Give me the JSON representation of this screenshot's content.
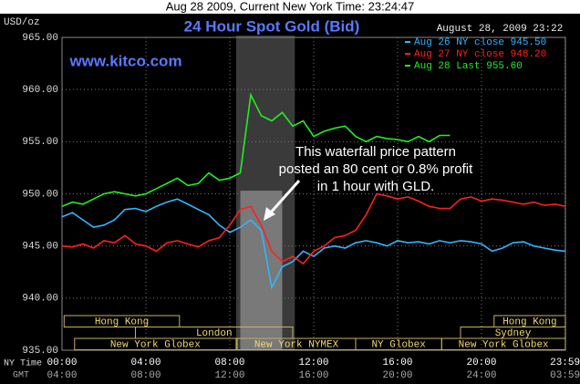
{
  "chart_data": {
    "type": "line",
    "header": "Aug 28 2009, Current New York Time: 23:24:47",
    "title": "24 Hour Spot Gold (Bid)",
    "website": "www.kitco.com",
    "timestamp": "August 28, 2009 23:22",
    "y_label": "USD/oz",
    "x_label": "NY Time",
    "x2_label": "GMT",
    "annotation": [
      "This waterfall price pattern",
      "posted an 80 cent or 0.8% profit",
      "in 1 hour with GLD."
    ],
    "ylim": [
      935,
      965
    ],
    "yticks": [
      {
        "value": 935,
        "label": "935.00"
      },
      {
        "value": 940,
        "label": "940.00"
      },
      {
        "value": 945,
        "label": "945.00"
      },
      {
        "value": 950,
        "label": "950.00"
      },
      {
        "value": 955,
        "label": "955.00"
      },
      {
        "value": 960,
        "label": "960.00"
      },
      {
        "value": 965,
        "label": "965.00"
      }
    ],
    "xlim": [
      0,
      24
    ],
    "xticks": [
      {
        "value": 0,
        "label": "00:00"
      },
      {
        "value": 4,
        "label": "04:00"
      },
      {
        "value": 8,
        "label": "08:00"
      },
      {
        "value": 12,
        "label": "12:00"
      },
      {
        "value": 16,
        "label": "16:00"
      },
      {
        "value": 20,
        "label": "20:00"
      },
      {
        "value": 23.983,
        "label": "23:59"
      }
    ],
    "x2_tick_labels": [
      "04:00",
      "08:00",
      "12:00",
      "16:00",
      "20:00",
      "24:00",
      "03:59"
    ],
    "grid": true,
    "legend": "top-right",
    "shaded_region": [
      8.3,
      11.1
    ],
    "highlight_box": {
      "x": [
        8.5,
        10.5
      ],
      "y": [
        935,
        950.3
      ]
    },
    "sessions": [
      {
        "name": "Hong Kong",
        "start": 0.1,
        "end": 5.6
      },
      {
        "name": "Hong Kong",
        "start": 20.6,
        "end": 24
      },
      {
        "name": "London",
        "start": 3.5,
        "end": 11.0
      },
      {
        "name": "Sydney",
        "start": 19.0,
        "end": 24
      },
      {
        "name": "New York Globex",
        "start": 0.6,
        "end": 8.3
      },
      {
        "name": "New York NYMEX",
        "start": 8.35,
        "end": 14.0
      },
      {
        "name": "NY Globex",
        "start": 14.0,
        "end": 18.1
      },
      {
        "name": "New York Globex",
        "start": 18.1,
        "end": 24
      }
    ],
    "x": [
      0,
      0.5,
      1,
      1.5,
      2,
      2.5,
      3,
      3.5,
      4,
      4.5,
      5,
      5.5,
      6,
      6.5,
      7,
      7.5,
      8,
      8.5,
      9,
      9.5,
      10,
      10.5,
      11,
      11.5,
      12,
      12.5,
      13,
      13.5,
      14,
      14.5,
      15,
      15.5,
      16,
      16.5,
      17,
      17.5,
      18,
      18.5,
      19,
      19.5,
      20,
      20.5,
      21,
      21.5,
      22,
      22.5,
      23,
      23.5,
      24
    ],
    "series": [
      {
        "name": "Aug 26 NY close 945.50",
        "color": "#33b5ff",
        "values": [
          947.8,
          948.2,
          947.5,
          946.8,
          947.0,
          947.5,
          948.5,
          948.6,
          948.3,
          948.8,
          949.2,
          949.5,
          949.0,
          948.5,
          948.0,
          947.0,
          946.3,
          946.8,
          947.5,
          946.5,
          941.0,
          943.0,
          943.5,
          944.5,
          944.0,
          944.8,
          945.0,
          944.8,
          945.3,
          945.5,
          945.3,
          945.0,
          945.5,
          945.3,
          945.4,
          945.2,
          945.5,
          945.3,
          945.5,
          945.4,
          945.2,
          944.5,
          944.8,
          945.3,
          945.4,
          945.0,
          944.8,
          944.6,
          944.5
        ]
      },
      {
        "name": "Aug 27 NY close 948.20",
        "color": "#ff2020",
        "values": [
          945.0,
          944.9,
          945.2,
          944.8,
          945.5,
          945.3,
          946.0,
          945.2,
          945.0,
          944.5,
          945.3,
          945.5,
          945.2,
          944.9,
          945.5,
          945.8,
          947.0,
          948.5,
          948.8,
          947.0,
          944.5,
          943.5,
          944.0,
          943.3,
          944.5,
          945.0,
          945.8,
          946.0,
          946.5,
          948.0,
          950.0,
          949.8,
          949.5,
          949.7,
          949.3,
          948.8,
          948.6,
          948.6,
          949.5,
          949.7,
          949.3,
          949.5,
          949.4,
          949.2,
          949.0,
          949.2,
          948.9,
          949.0,
          948.8
        ]
      },
      {
        "name": "Aug 28 Last 955.60",
        "color": "#22ee22",
        "values": [
          948.8,
          949.2,
          949.0,
          949.5,
          950.0,
          950.2,
          950.0,
          949.8,
          950.0,
          950.5,
          951.0,
          951.5,
          950.8,
          951.0,
          952.0,
          951.3,
          951.5,
          952.0,
          959.5,
          957.5,
          957.0,
          957.8,
          956.5,
          957.0,
          955.5,
          956.0,
          956.3,
          956.5,
          955.5,
          955.0,
          955.5,
          955.3,
          955.2,
          955.0,
          955.5,
          955.0,
          955.6,
          955.6,
          null,
          null,
          null,
          null,
          null,
          null,
          null,
          null,
          null,
          null,
          null
        ]
      }
    ]
  }
}
